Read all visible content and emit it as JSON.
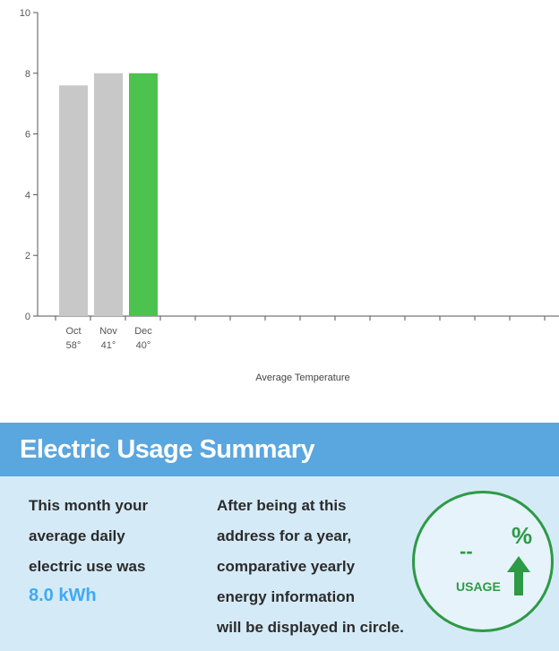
{
  "chart_data": {
    "type": "bar",
    "categories": [
      "Oct",
      "Nov",
      "Dec"
    ],
    "temperatures": [
      "58°",
      "41°",
      "40°"
    ],
    "values": [
      7.6,
      8.0,
      8.0
    ],
    "highlight_index": 2,
    "ylim": [
      0,
      10
    ],
    "yticks": [
      "0",
      "2",
      "4",
      "6",
      "8",
      "10"
    ],
    "xlabel": "Average Temperature",
    "ylabel": "",
    "grid": false,
    "colors": {
      "bar": "#c8c8c8",
      "highlight": "#4cc24f",
      "axis": "#555555"
    }
  },
  "summary": {
    "title": "Electric Usage Summary",
    "left_lines": [
      "This month your",
      "average daily",
      "electric use was"
    ],
    "usage_value": "8.0 kWh",
    "right_lines": [
      "After being at this",
      "address for a year,",
      "comparative yearly",
      "energy information",
      "will be displayed in circle."
    ],
    "circle": {
      "dashes": "--",
      "percent": "%",
      "label": "USAGE"
    }
  }
}
